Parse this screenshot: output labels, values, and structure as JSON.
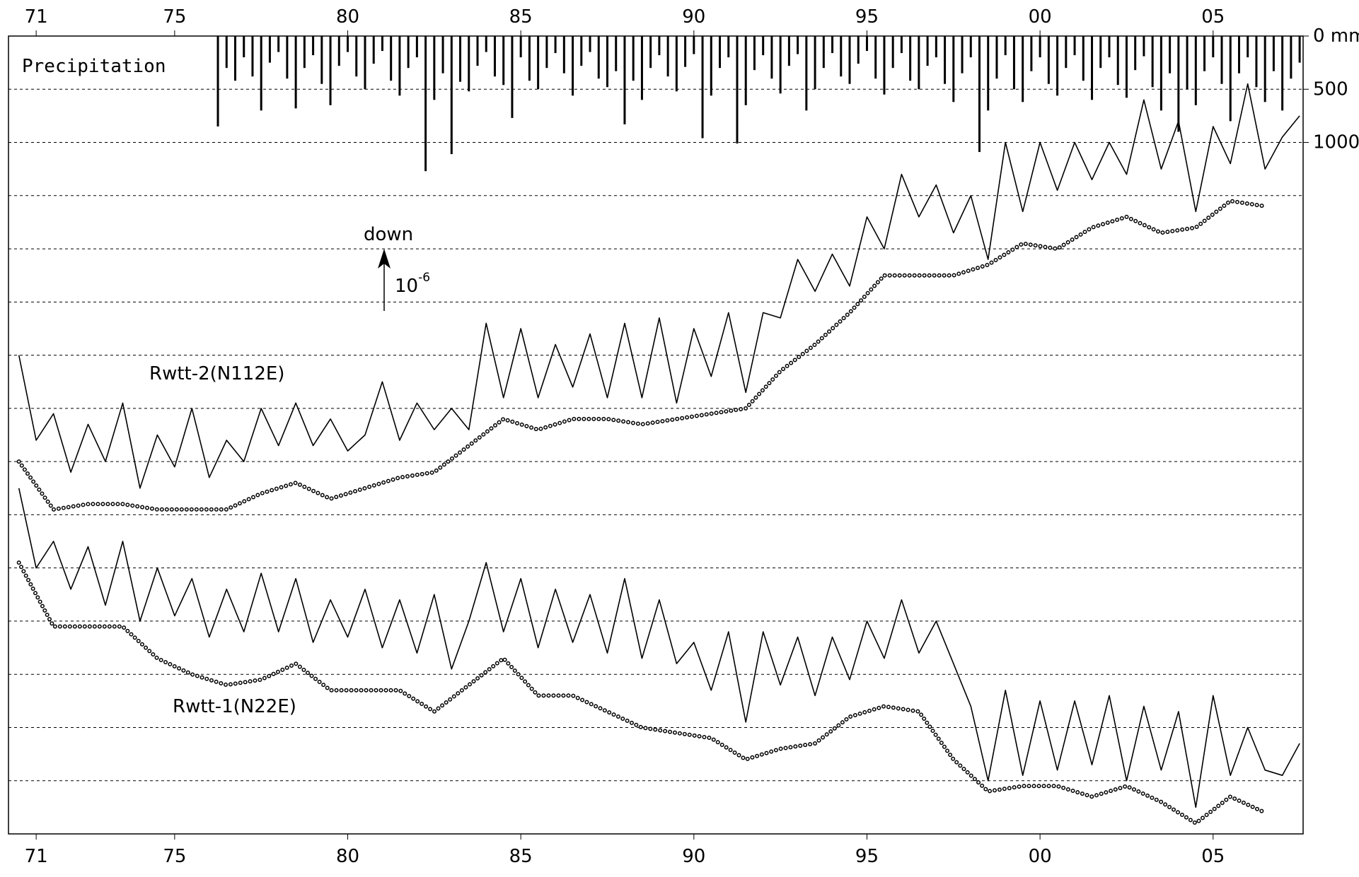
{
  "chart_data": {
    "type": "line",
    "xlim": [
      1970.2,
      2007.6
    ],
    "xticks": [
      {
        "value": 1971,
        "label": "71"
      },
      {
        "value": 1975,
        "label": "75"
      },
      {
        "value": 1980,
        "label": "80"
      },
      {
        "value": 1985,
        "label": "85"
      },
      {
        "value": 1990,
        "label": "90"
      },
      {
        "value": 1995,
        "label": "95"
      },
      {
        "value": 2000,
        "label": "00"
      },
      {
        "value": 2005,
        "label": "05"
      }
    ],
    "ylim": [
      0,
      15
    ],
    "ygrid": [
      1,
      2,
      3,
      4,
      5,
      6,
      7,
      8,
      9,
      10,
      11,
      12,
      13,
      14
    ],
    "y2lim": [
      7500,
      0
    ],
    "y2ticks": [
      {
        "value": 0,
        "label": "0 mm"
      },
      500,
      1000
    ],
    "annotations": {
      "direction": "down",
      "scale": "10",
      "scale_exponent": "-6"
    },
    "series": [
      {
        "name": "Precipitation",
        "type": "bar",
        "axis": "y2",
        "color": "#000000",
        "x": [
          1976.25,
          1976.5,
          1976.75,
          1977,
          1977.25,
          1977.5,
          1977.75,
          1978,
          1978.25,
          1978.5,
          1978.75,
          1979,
          1979.25,
          1979.5,
          1979.75,
          1980,
          1980.25,
          1980.5,
          1980.75,
          1981,
          1981.25,
          1981.5,
          1981.75,
          1982,
          1982.25,
          1982.5,
          1982.75,
          1983,
          1983.25,
          1983.5,
          1983.75,
          1984,
          1984.25,
          1984.5,
          1984.75,
          1985,
          1985.25,
          1985.5,
          1985.75,
          1986,
          1986.25,
          1986.5,
          1986.75,
          1987,
          1987.25,
          1987.5,
          1987.75,
          1988,
          1988.25,
          1988.5,
          1988.75,
          1989,
          1989.25,
          1989.5,
          1989.75,
          1990,
          1990.25,
          1990.5,
          1990.75,
          1991,
          1991.25,
          1991.5,
          1991.75,
          1992,
          1992.25,
          1992.5,
          1992.75,
          1993,
          1993.25,
          1993.5,
          1993.75,
          1994,
          1994.25,
          1994.5,
          1994.75,
          1995,
          1995.25,
          1995.5,
          1995.75,
          1996,
          1996.25,
          1996.5,
          1996.75,
          1997,
          1997.25,
          1997.5,
          1997.75,
          1998,
          1998.25,
          1998.5,
          1998.75,
          1999,
          1999.25,
          1999.5,
          1999.75,
          2000,
          2000.25,
          2000.5,
          2000.75,
          2001,
          2001.25,
          2001.5,
          2001.75,
          2002,
          2002.25,
          2002.5,
          2002.75,
          2003,
          2003.25,
          2003.5,
          2003.75,
          2004,
          2004.25,
          2004.5,
          2004.75,
          2005,
          2005.25,
          2005.5,
          2005.75,
          2006,
          2006.25,
          2006.5,
          2006.75,
          2007,
          2007.25,
          2007.5
        ],
        "values": [
          850,
          300,
          420,
          200,
          380,
          700,
          250,
          150,
          400,
          680,
          300,
          180,
          450,
          650,
          280,
          150,
          380,
          500,
          260,
          140,
          420,
          560,
          300,
          200,
          1270,
          600,
          350,
          1110,
          430,
          520,
          280,
          150,
          380,
          460,
          770,
          200,
          420,
          500,
          300,
          160,
          350,
          560,
          280,
          150,
          400,
          480,
          330,
          830,
          420,
          600,
          300,
          180,
          380,
          520,
          290,
          170,
          960,
          560,
          300,
          200,
          1010,
          650,
          320,
          180,
          400,
          540,
          280,
          170,
          700,
          500,
          300,
          160,
          380,
          450,
          260,
          140,
          400,
          550,
          300,
          160,
          420,
          500,
          280,
          200,
          450,
          620,
          350,
          200,
          1090,
          700,
          400,
          180,
          500,
          620,
          330,
          200,
          450,
          560,
          300,
          180,
          420,
          600,
          300,
          200,
          460,
          580,
          320,
          190,
          480,
          700,
          350,
          900,
          500,
          650,
          330,
          200,
          450,
          800,
          350,
          200,
          480,
          620,
          330,
          700,
          400,
          250
        ]
      },
      {
        "name": "Rwtt-2(N112E)",
        "color": "#000000",
        "x": [
          1970.5,
          1971,
          1971.5,
          1972,
          1972.5,
          1973,
          1973.5,
          1974,
          1974.5,
          1975,
          1975.5,
          1976,
          1976.5,
          1977,
          1977.5,
          1978,
          1978.5,
          1979,
          1979.5,
          1980,
          1980.5,
          1981,
          1981.5,
          1982,
          1982.5,
          1983,
          1983.5,
          1984,
          1984.5,
          1985,
          1985.5,
          1986,
          1986.5,
          1987,
          1987.5,
          1988,
          1988.5,
          1989,
          1989.5,
          1990,
          1990.5,
          1991,
          1991.5,
          1992,
          1992.5,
          1993,
          1993.5,
          1994,
          1994.5,
          1995,
          1995.5,
          1996,
          1996.5,
          1997,
          1997.5,
          1998,
          1998.5,
          1999,
          1999.5,
          2000,
          2000.5,
          2001,
          2001.5,
          2002,
          2002.5,
          2003,
          2003.5,
          2004,
          2004.5,
          2005,
          2005.5,
          2006,
          2006.5,
          2007,
          2007.5
        ],
        "values": [
          9.0,
          7.4,
          7.9,
          6.8,
          7.7,
          7.0,
          8.1,
          6.5,
          7.5,
          6.9,
          8.0,
          6.7,
          7.4,
          7.0,
          8.0,
          7.3,
          8.1,
          7.3,
          7.8,
          7.2,
          7.5,
          8.5,
          7.4,
          8.1,
          7.6,
          8.0,
          7.6,
          9.6,
          8.2,
          9.5,
          8.2,
          9.2,
          8.4,
          9.4,
          8.2,
          9.6,
          8.2,
          9.7,
          8.1,
          9.5,
          8.6,
          9.8,
          8.3,
          9.8,
          9.7,
          10.8,
          10.2,
          10.9,
          10.3,
          11.6,
          11.0,
          12.4,
          11.6,
          12.2,
          11.3,
          12.0,
          10.8,
          13.0,
          11.7,
          13.0,
          12.1,
          13.0,
          12.3,
          13.0,
          12.4,
          13.8,
          12.5,
          13.4,
          11.7,
          13.3,
          12.6,
          14.1,
          12.5,
          13.1,
          13.5
        ]
      },
      {
        "style": "dots",
        "color": "#000000",
        "x": [
          1970.5,
          1971.5,
          1972.5,
          1973.5,
          1974.5,
          1975.5,
          1976.5,
          1977.5,
          1978.5,
          1979.5,
          1980.5,
          1981.5,
          1982.5,
          1983.5,
          1984.5,
          1985.5,
          1986.5,
          1987.5,
          1988.5,
          1989.5,
          1990.5,
          1991.5,
          1992.5,
          1993.5,
          1994.5,
          1995.5,
          1996.5,
          1997.5,
          1998.5,
          1999.5,
          2000.5,
          2001.5,
          2002.5,
          2003.5,
          2004.5,
          2005.5,
          2006.5
        ],
        "values": [
          7.0,
          6.1,
          6.2,
          6.2,
          6.1,
          6.1,
          6.1,
          6.4,
          6.6,
          6.3,
          6.5,
          6.7,
          6.8,
          7.3,
          7.8,
          7.6,
          7.8,
          7.8,
          7.7,
          7.8,
          7.9,
          8.0,
          8.7,
          9.2,
          9.8,
          10.5,
          10.5,
          10.5,
          10.7,
          11.1,
          11.0,
          11.4,
          11.6,
          11.3,
          11.4,
          11.9,
          11.8
        ]
      },
      {
        "name": "Rwtt-1(N22E)",
        "color": "#000000",
        "x": [
          1970.5,
          1971,
          1971.5,
          1972,
          1972.5,
          1973,
          1973.5,
          1974,
          1974.5,
          1975,
          1975.5,
          1976,
          1976.5,
          1977,
          1977.5,
          1978,
          1978.5,
          1979,
          1979.5,
          1980,
          1980.5,
          1981,
          1981.5,
          1982,
          1982.5,
          1983,
          1983.5,
          1984,
          1984.5,
          1985,
          1985.5,
          1986,
          1986.5,
          1987,
          1987.5,
          1988,
          1988.5,
          1989,
          1989.5,
          1990,
          1990.5,
          1991,
          1991.5,
          1992,
          1992.5,
          1993,
          1993.5,
          1994,
          1994.5,
          1995,
          1995.5,
          1996,
          1996.5,
          1997,
          1997.5,
          1998,
          1998.5,
          1999,
          1999.5,
          2000,
          2000.5,
          2001,
          2001.5,
          2002,
          2002.5,
          2003,
          2003.5,
          2004,
          2004.5,
          2005,
          2005.5,
          2006,
          2006.5,
          2007,
          2007.5
        ],
        "values": [
          6.5,
          5.0,
          5.5,
          4.6,
          5.4,
          4.3,
          5.5,
          4.0,
          5.0,
          4.1,
          4.8,
          3.7,
          4.6,
          3.8,
          4.9,
          3.8,
          4.8,
          3.6,
          4.4,
          3.7,
          4.6,
          3.5,
          4.4,
          3.4,
          4.5,
          3.1,
          4.0,
          5.1,
          3.8,
          4.8,
          3.5,
          4.6,
          3.6,
          4.5,
          3.4,
          4.8,
          3.3,
          4.4,
          3.2,
          3.6,
          2.7,
          3.8,
          2.1,
          3.8,
          2.8,
          3.7,
          2.6,
          3.7,
          2.9,
          4.0,
          3.3,
          4.4,
          3.4,
          4.0,
          3.2,
          2.4,
          1.0,
          2.7,
          1.1,
          2.5,
          1.2,
          2.5,
          1.3,
          2.6,
          1.0,
          2.4,
          1.2,
          2.3,
          0.5,
          2.6,
          1.1,
          2.0,
          1.2,
          1.1,
          1.7
        ]
      },
      {
        "style": "dots",
        "color": "#000000",
        "x": [
          1970.5,
          1971.5,
          1972.5,
          1973.5,
          1974.5,
          1975.5,
          1976.5,
          1977.5,
          1978.5,
          1979.5,
          1980.5,
          1981.5,
          1982.5,
          1983.5,
          1984.5,
          1985.5,
          1986.5,
          1987.5,
          1988.5,
          1989.5,
          1990.5,
          1991.5,
          1992.5,
          1993.5,
          1994.5,
          1995.5,
          1996.5,
          1997.5,
          1998.5,
          1999.5,
          2000.5,
          2001.5,
          2002.5,
          2003.5,
          2004.5,
          2005.5,
          2006.5
        ],
        "values": [
          5.1,
          3.9,
          3.9,
          3.9,
          3.3,
          3.0,
          2.8,
          2.9,
          3.2,
          2.7,
          2.7,
          2.7,
          2.3,
          2.8,
          3.3,
          2.6,
          2.6,
          2.3,
          2.0,
          1.9,
          1.8,
          1.4,
          1.6,
          1.7,
          2.2,
          2.4,
          2.3,
          1.4,
          0.8,
          0.9,
          0.9,
          0.7,
          0.9,
          0.6,
          0.2,
          0.7,
          0.4
        ]
      }
    ]
  }
}
